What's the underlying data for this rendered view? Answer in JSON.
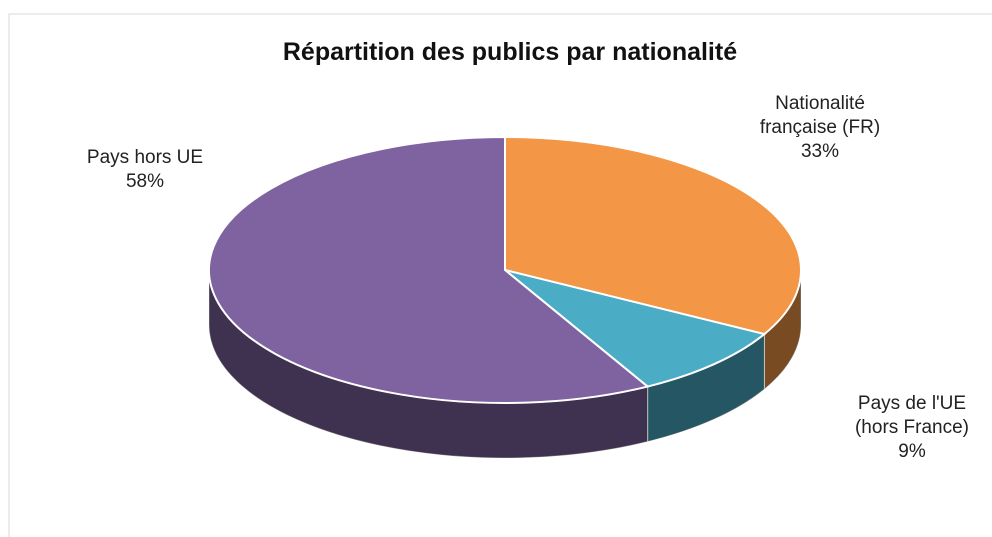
{
  "chart_data": {
    "type": "pie3d",
    "title": "Répartition des publics par nationalité",
    "categories": [
      "Nationalité française (FR)",
      "Pays de l'UE (hors France)",
      "Pays hors UE"
    ],
    "values": [
      33,
      9,
      58
    ],
    "value_labels": [
      "33%",
      "9%",
      "58%"
    ],
    "colors": [
      "#f39646",
      "#4bacc6",
      "#7f62a0"
    ]
  }
}
